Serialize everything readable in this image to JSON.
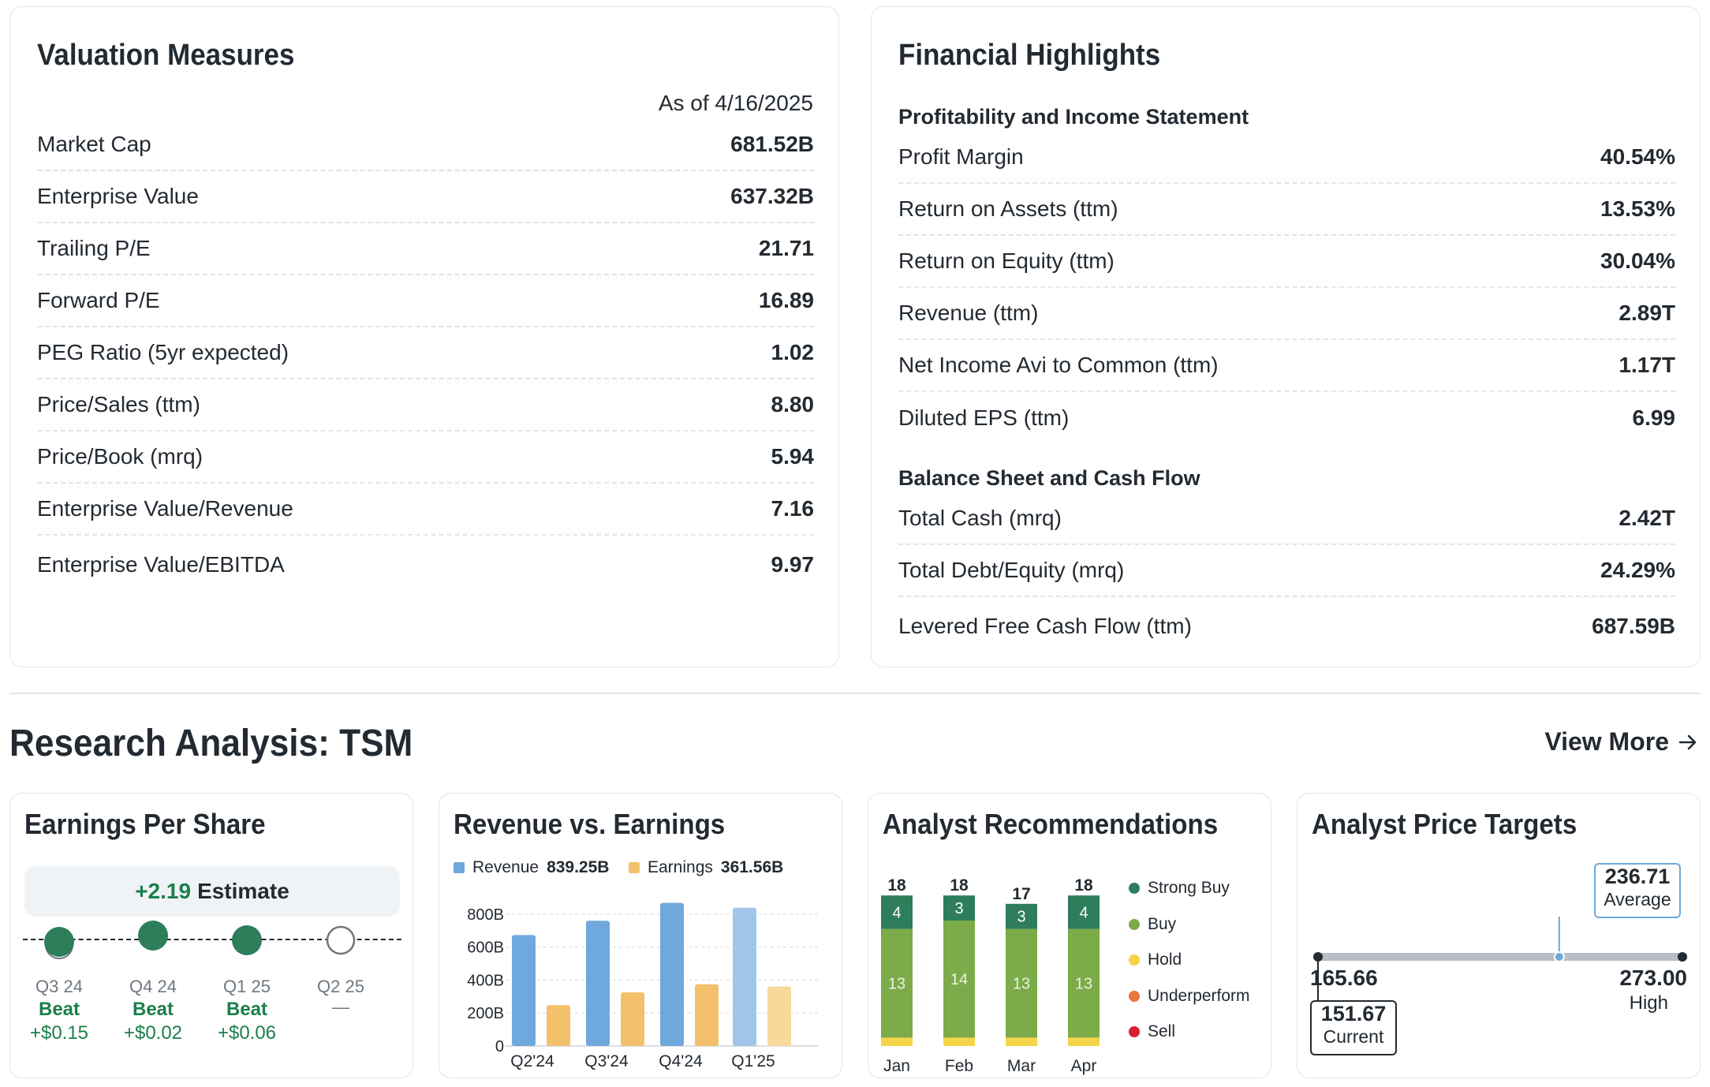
{
  "valuation": {
    "title": "Valuation Measures",
    "as_of": "As of 4/16/2025",
    "rows": [
      {
        "label": "Market Cap",
        "value": "681.52B"
      },
      {
        "label": "Enterprise Value",
        "value": "637.32B"
      },
      {
        "label": "Trailing P/E",
        "value": "21.71"
      },
      {
        "label": "Forward P/E",
        "value": "16.89"
      },
      {
        "label": "PEG Ratio (5yr expected)",
        "value": "1.02"
      },
      {
        "label": "Price/Sales (ttm)",
        "value": "8.80"
      },
      {
        "label": "Price/Book (mrq)",
        "value": "5.94"
      },
      {
        "label": "Enterprise Value/Revenue",
        "value": "7.16"
      },
      {
        "label": "Enterprise Value/EBITDA",
        "value": "9.97"
      }
    ]
  },
  "financial": {
    "title": "Financial Highlights",
    "profit_heading": "Profitability and Income Statement",
    "profit_rows": [
      {
        "label": "Profit Margin",
        "value": "40.54%"
      },
      {
        "label": "Return on Assets (ttm)",
        "value": "13.53%"
      },
      {
        "label": "Return on Equity (ttm)",
        "value": "30.04%"
      },
      {
        "label": "Revenue (ttm)",
        "value": "2.89T"
      },
      {
        "label": "Net Income Avi to Common (ttm)",
        "value": "1.17T"
      },
      {
        "label": "Diluted EPS (ttm)",
        "value": "6.99"
      }
    ],
    "balance_heading": "Balance Sheet and Cash Flow",
    "balance_rows": [
      {
        "label": "Total Cash (mrq)",
        "value": "2.42T"
      },
      {
        "label": "Total Debt/Equity (mrq)",
        "value": "24.29%"
      },
      {
        "label": "Levered Free Cash Flow (ttm)",
        "value": "687.59B"
      }
    ]
  },
  "research": {
    "title": "Research Analysis: TSM",
    "view_more": "View More",
    "arrow_icon": "arrow-right-icon"
  },
  "eps": {
    "title": "Earnings Per Share",
    "estimate_value": "+2.19",
    "estimate_label": "Estimate",
    "quarters": [
      {
        "q": "Q3 24",
        "result": "Beat",
        "diff": "+$0.15"
      },
      {
        "q": "Q4 24",
        "result": "Beat",
        "diff": "+$0.02"
      },
      {
        "q": "Q1 25",
        "result": "Beat",
        "diff": "+$0.06"
      },
      {
        "q": "Q2 25",
        "result": "",
        "diff": "—"
      }
    ]
  },
  "revenue_earnings": {
    "title": "Revenue vs. Earnings",
    "legend": [
      {
        "name": "Revenue",
        "value": "839.25B",
        "color": "#6fa8dc"
      },
      {
        "name": "Earnings",
        "value": "361.56B",
        "color": "#f3c06b"
      }
    ],
    "chart_data": {
      "type": "bar",
      "categories": [
        "Q2'24",
        "Q3'24",
        "Q4'24",
        "Q1'25"
      ],
      "series": [
        {
          "name": "Revenue",
          "values": [
            673.5,
            759.7,
            868.5,
            839.25
          ]
        },
        {
          "name": "Earnings",
          "values": [
            247.8,
            325.3,
            374.7,
            361.56
          ]
        }
      ],
      "y_ticks": [
        "0",
        "200B",
        "400B",
        "600B",
        "800B"
      ],
      "ylim": [
        0,
        900
      ]
    }
  },
  "recommendations": {
    "title": "Analyst Recommendations",
    "legend": [
      {
        "name": "Strong Buy",
        "color": "#2e7d5b"
      },
      {
        "name": "Buy",
        "color": "#7cab49"
      },
      {
        "name": "Hold",
        "color": "#f5d547"
      },
      {
        "name": "Underperform",
        "color": "#e8793b"
      },
      {
        "name": "Sell",
        "color": "#d6212f"
      }
    ],
    "chart_data": {
      "type": "bar",
      "categories": [
        "Jan",
        "Feb",
        "Mar",
        "Apr"
      ],
      "totals": [
        18,
        18,
        17,
        18
      ],
      "series": [
        {
          "name": "Strong Buy",
          "values": [
            4,
            3,
            3,
            4
          ]
        },
        {
          "name": "Buy",
          "values": [
            13,
            14,
            13,
            13
          ]
        },
        {
          "name": "Hold",
          "values": [
            1,
            1,
            1,
            1
          ]
        }
      ]
    }
  },
  "price_targets": {
    "title": "Analyst Price Targets",
    "low": "165.66",
    "high": "273.00",
    "high_label": "High",
    "average": "236.71",
    "average_label": "Average",
    "current": "151.67",
    "current_label": "Current",
    "low_num": 165.66,
    "high_num": 273.0,
    "average_num": 236.71
  }
}
